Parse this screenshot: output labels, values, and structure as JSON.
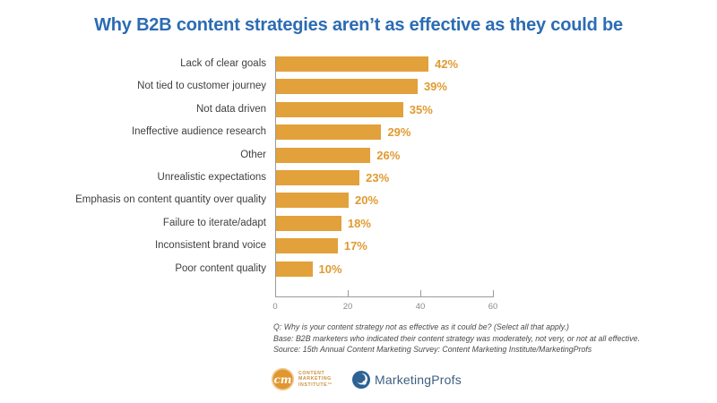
{
  "title": "Why B2B content strategies aren’t as effective as they could be",
  "chart_data": {
    "type": "bar",
    "orientation": "horizontal",
    "title": "Why B2B content strategies aren’t as effective as they could be",
    "categories": [
      "Lack of clear goals",
      "Not tied to customer journey",
      "Not data driven",
      "Ineffective audience research",
      "Other",
      "Unrealistic expectations",
      "Emphasis on content quantity over quality",
      "Failure to iterate/adapt",
      "Inconsistent brand voice",
      "Poor content quality"
    ],
    "values": [
      42,
      39,
      35,
      29,
      26,
      23,
      20,
      18,
      17,
      10
    ],
    "value_suffix": "%",
    "xlabel": "",
    "ylabel": "",
    "xlim": [
      0,
      60
    ],
    "x_ticks": [
      0,
      20,
      40,
      60
    ],
    "grid": "off",
    "legend": "none",
    "bar_color": "#E2A13B",
    "value_label_color": "#E09A30"
  },
  "footnotes": {
    "q": "Q: Why is your content strategy not as effective as it could be? (Select all that apply.)",
    "base": "Base: B2B marketers who indicated their content strategy was moderately, not very, or not at all effective.",
    "source": "Source: 15th Annual Content Marketing Survey: Content Marketing Institute/MarketingProfs"
  },
  "logos": {
    "cmi": {
      "monogram": "cm",
      "lines": [
        "CONTENT",
        "MARKETING",
        "INSTITUTE™"
      ]
    },
    "marketingprofs": {
      "name": "MarketingProfs"
    }
  },
  "colors": {
    "title": "#2B6CB3",
    "bar": "#E2A13B",
    "axis": "#9B9B9B",
    "cmi_orange": "#E1962F",
    "mp_blue": "#2D6293"
  }
}
